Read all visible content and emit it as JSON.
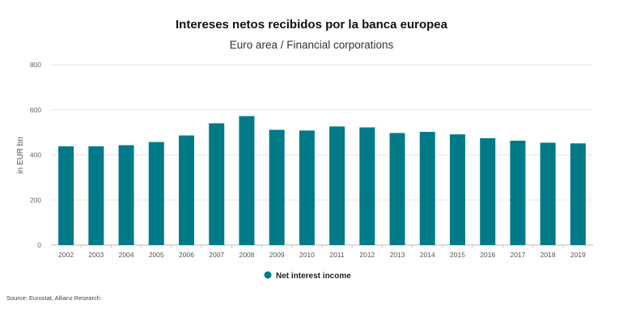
{
  "chart_data": {
    "type": "bar",
    "title": "Intereses netos recibidos por la banca europea",
    "subtitle": "Euro area / Financial corporations",
    "ylabel": "in EUR bn",
    "xlabel": "",
    "ylim": [
      0,
      800
    ],
    "yticks": [
      0,
      200,
      400,
      600,
      800
    ],
    "categories": [
      "2002",
      "2003",
      "2004",
      "2005",
      "2006",
      "2007",
      "2008",
      "2009",
      "2010",
      "2011",
      "2012",
      "2013",
      "2014",
      "2015",
      "2016",
      "2017",
      "2018",
      "2019"
    ],
    "series": [
      {
        "name": "Net interest income",
        "color": "#007a87",
        "values": [
          438,
          438,
          443,
          457,
          486,
          540,
          572,
          511,
          508,
          526,
          522,
          497,
          502,
          491,
          474,
          463,
          454,
          451
        ]
      }
    ],
    "grid": true,
    "legend_position": "bottom-center"
  },
  "source": "Source: Eurostat, Allianz Research"
}
